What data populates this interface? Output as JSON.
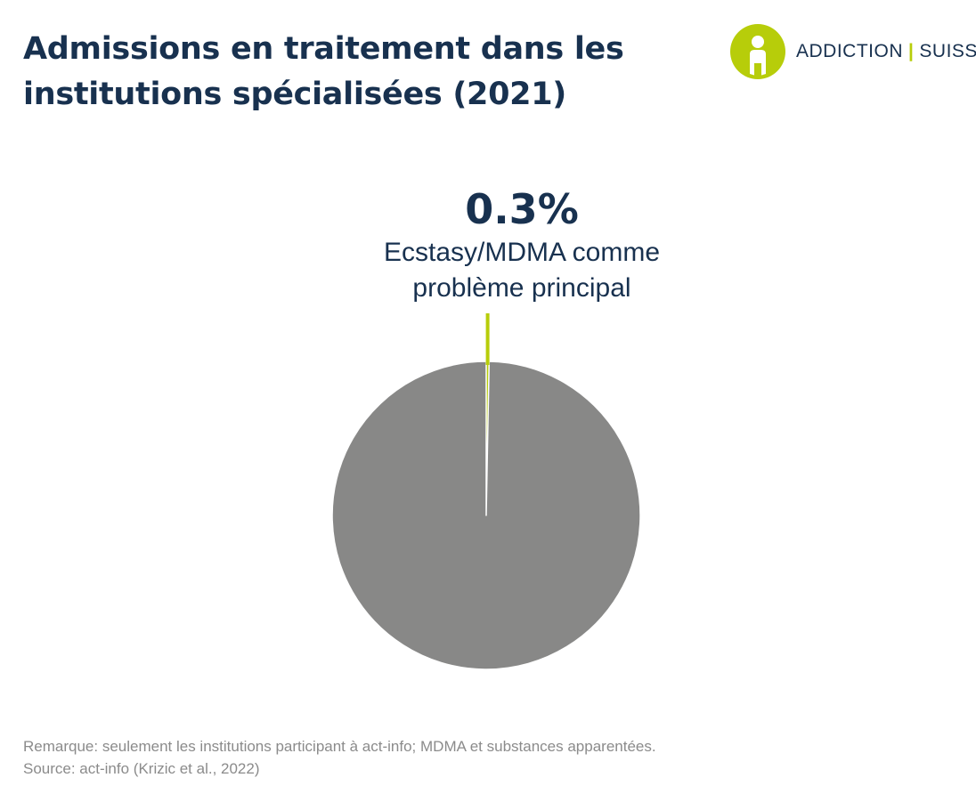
{
  "title": {
    "line1": "Admissions en traitement dans les",
    "line2": "institutions spécialisées (2021)"
  },
  "logo": {
    "left": "ADDICTION",
    "right": "SUISSE",
    "colors": {
      "mark": "#b7cd0a",
      "text": "#18314f"
    }
  },
  "annotation": {
    "value_label": "0.3%",
    "caption_line1": "Ecstasy/MDMA comme",
    "caption_line2": "problème principal"
  },
  "chart_data": {
    "type": "pie",
    "slices": [
      {
        "label": "Ecstasy/MDMA comme problème principal",
        "value": 0.3,
        "color": "#b7cd0a"
      },
      {
        "value": 99.7,
        "color": "#888887"
      }
    ]
  },
  "footer": {
    "note": "Remarque: seulement les institutions participant à act-info; MDMA et substances apparentées.",
    "source": "Source: act-info (Krizic et al., 2022)"
  }
}
